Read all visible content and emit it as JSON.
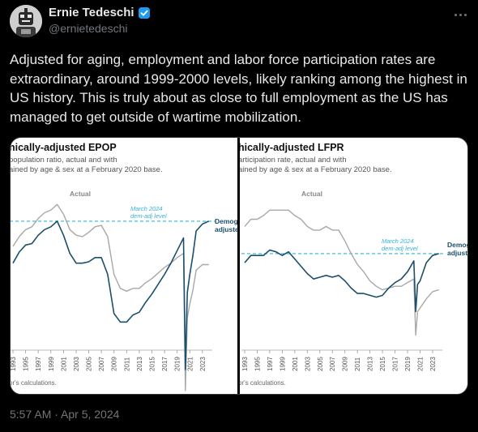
{
  "author": {
    "display_name": "Ernie Tedeschi",
    "handle": "@ernietedeschi",
    "verified": true,
    "avatar_icon": "robot-avatar-icon"
  },
  "tweet": {
    "text": "Adjusted for aging, employment and labor force participation rates are extraordinary, around 1999-2000 levels, likely ranking among the highest in US history. This is truly about as close to full employment as the US has managed to get outside of wartime mobilization.",
    "timestamp": "5:57 AM · Apr 5, 2024"
  },
  "colors": {
    "actual": "#a8a8a8",
    "adjusted": "#1b4f6b",
    "reference": "#33b3d6",
    "verified": "#1d9bf0"
  },
  "chart_data": [
    {
      "type": "line",
      "title": "hically-adjusted EPOP",
      "subtitle_lines": [
        "population ratio, actual and with",
        "ained by age & sex at a February 2020 base."
      ],
      "x_ticks": [
        "1993",
        "1995",
        "1997",
        "1999",
        "2001",
        "2003",
        "2005",
        "2007",
        "2009",
        "2011",
        "2013",
        "2015",
        "2017",
        "2019",
        "2021",
        "2023"
      ],
      "x_range": [
        1993,
        2024.3
      ],
      "y_range": [
        55,
        66
      ],
      "ref_line": {
        "value": 63.4,
        "label_lines": [
          "March 2024",
          "dem-adj level"
        ]
      },
      "series_labels": {
        "actual": "Actual",
        "adjusted_lines": [
          "Demog",
          "adjuste"
        ]
      },
      "footnote": "or's calculations.",
      "series": [
        {
          "name": "Actual",
          "points": [
            [
              1993,
              61.6
            ],
            [
              1994,
              62.3
            ],
            [
              1995,
              62.8
            ],
            [
              1996,
              63.0
            ],
            [
              1997,
              63.6
            ],
            [
              1998,
              64.0
            ],
            [
              1999,
              64.2
            ],
            [
              2000,
              64.6
            ],
            [
              2001,
              63.9
            ],
            [
              2002,
              62.8
            ],
            [
              2003,
              62.4
            ],
            [
              2004,
              62.3
            ],
            [
              2005,
              62.6
            ],
            [
              2006,
              63.0
            ],
            [
              2007,
              63.1
            ],
            [
              2008,
              62.3
            ],
            [
              2009,
              59.6
            ],
            [
              2010,
              58.6
            ],
            [
              2011,
              58.4
            ],
            [
              2012,
              58.6
            ],
            [
              2013,
              58.6
            ],
            [
              2014,
              59.0
            ],
            [
              2015,
              59.3
            ],
            [
              2016,
              59.7
            ],
            [
              2017,
              60.1
            ],
            [
              2018,
              60.4
            ],
            [
              2019,
              60.8
            ],
            [
              2020.0,
              61.1
            ],
            [
              2020.3,
              51.3
            ],
            [
              2020.6,
              56.5
            ],
            [
              2021,
              57.5
            ],
            [
              2021.5,
              58.5
            ],
            [
              2022,
              59.9
            ],
            [
              2023,
              60.3
            ],
            [
              2024,
              60.3
            ]
          ]
        },
        {
          "name": "Demog adjuste",
          "points": [
            [
              1993,
              60.4
            ],
            [
              1994,
              61.2
            ],
            [
              1995,
              61.7
            ],
            [
              1996,
              61.8
            ],
            [
              1997,
              62.4
            ],
            [
              1998,
              62.8
            ],
            [
              1999,
              63.0
            ],
            [
              2000,
              63.4
            ],
            [
              2001,
              62.4
            ],
            [
              2002,
              61.1
            ],
            [
              2003,
              60.4
            ],
            [
              2004,
              60.4
            ],
            [
              2005,
              60.5
            ],
            [
              2006,
              60.8
            ],
            [
              2007,
              60.8
            ],
            [
              2008,
              59.6
            ],
            [
              2009,
              56.8
            ],
            [
              2010,
              56.2
            ],
            [
              2011,
              56.2
            ],
            [
              2012,
              56.7
            ],
            [
              2013,
              56.9
            ],
            [
              2014,
              57.6
            ],
            [
              2015,
              58.2
            ],
            [
              2016,
              58.9
            ],
            [
              2017,
              59.6
            ],
            [
              2018,
              60.4
            ],
            [
              2019,
              61.3
            ],
            [
              2020.0,
              62.2
            ],
            [
              2020.3,
              52.8
            ],
            [
              2020.6,
              58.3
            ],
            [
              2021,
              59.6
            ],
            [
              2021.5,
              61.0
            ],
            [
              2022,
              62.7
            ],
            [
              2023,
              63.2
            ],
            [
              2024,
              63.4
            ]
          ]
        }
      ]
    },
    {
      "type": "line",
      "title": "hically-adjusted LFPR",
      "subtitle_lines": [
        "articipation rate, actual and with",
        "ained by age & sex at a February 2020 base."
      ],
      "x_ticks": [
        "1993",
        "1995",
        "1997",
        "1999",
        "2001",
        "2003",
        "2005",
        "2007",
        "2009",
        "2011",
        "2013",
        "2015",
        "2017",
        "2019",
        "2021",
        "2023"
      ],
      "x_range": [
        1993,
        2024.3
      ],
      "y_range": [
        60,
        68.5
      ],
      "ref_line": {
        "value": 64.7,
        "label_lines": [
          "March 2024",
          "dem-adj level"
        ]
      },
      "series_labels": {
        "actual": "Actual",
        "adjusted_lines": [
          "Demog",
          "adjuste"
        ]
      },
      "footnote": "or's calculations.",
      "series": [
        {
          "name": "Actual",
          "points": [
            [
              1993,
              66.2
            ],
            [
              1994,
              66.6
            ],
            [
              1995,
              66.6
            ],
            [
              1996,
              66.8
            ],
            [
              1997,
              67.1
            ],
            [
              1998,
              67.1
            ],
            [
              1999,
              67.1
            ],
            [
              2000,
              67.1
            ],
            [
              2001,
              66.8
            ],
            [
              2002,
              66.6
            ],
            [
              2003,
              66.2
            ],
            [
              2004,
              66.0
            ],
            [
              2005,
              66.0
            ],
            [
              2006,
              66.2
            ],
            [
              2007,
              66.0
            ],
            [
              2008,
              66.0
            ],
            [
              2009,
              65.4
            ],
            [
              2010,
              64.7
            ],
            [
              2011,
              64.1
            ],
            [
              2012,
              63.7
            ],
            [
              2013,
              63.2
            ],
            [
              2014,
              62.9
            ],
            [
              2015,
              62.7
            ],
            [
              2016,
              62.8
            ],
            [
              2017,
              62.9
            ],
            [
              2018,
              62.9
            ],
            [
              2019,
              63.1
            ],
            [
              2020.0,
              63.3
            ],
            [
              2020.3,
              60.2
            ],
            [
              2020.6,
              61.5
            ],
            [
              2021,
              61.7
            ],
            [
              2022,
              62.2
            ],
            [
              2023,
              62.6
            ],
            [
              2024,
              62.7
            ]
          ]
        },
        {
          "name": "Demog adjuste",
          "points": [
            [
              1993,
              64.2
            ],
            [
              1994,
              64.6
            ],
            [
              1995,
              64.6
            ],
            [
              1996,
              64.6
            ],
            [
              1997,
              64.9
            ],
            [
              1998,
              64.8
            ],
            [
              1999,
              64.6
            ],
            [
              2000,
              64.8
            ],
            [
              2001,
              64.4
            ],
            [
              2002,
              64.0
            ],
            [
              2003,
              63.6
            ],
            [
              2004,
              63.3
            ],
            [
              2005,
              63.4
            ],
            [
              2006,
              63.5
            ],
            [
              2007,
              63.4
            ],
            [
              2008,
              63.5
            ],
            [
              2009,
              63.2
            ],
            [
              2010,
              62.8
            ],
            [
              2011,
              62.5
            ],
            [
              2012,
              62.5
            ],
            [
              2013,
              62.4
            ],
            [
              2014,
              62.3
            ],
            [
              2015,
              62.4
            ],
            [
              2016,
              62.8
            ],
            [
              2017,
              63.1
            ],
            [
              2018,
              63.3
            ],
            [
              2019,
              63.7
            ],
            [
              2020.0,
              64.3
            ],
            [
              2020.3,
              61.5
            ],
            [
              2020.6,
              63.0
            ],
            [
              2021,
              63.2
            ],
            [
              2022,
              64.2
            ],
            [
              2023,
              64.6
            ],
            [
              2024,
              64.7
            ]
          ]
        }
      ]
    }
  ]
}
